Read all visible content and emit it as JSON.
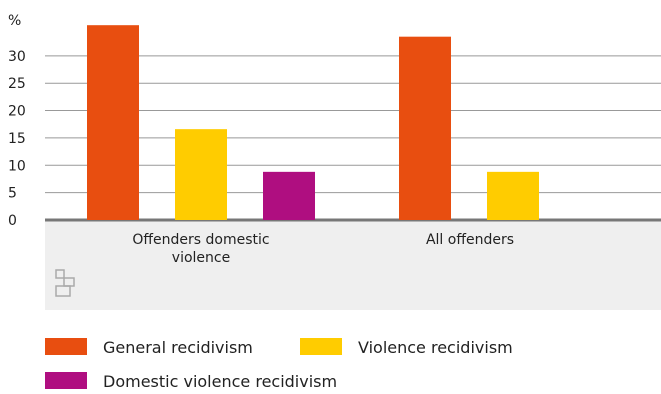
{
  "chart_data": {
    "type": "bar",
    "y_label": "%",
    "categories": [
      "Offenders domestic violence",
      "All offenders"
    ],
    "series": [
      {
        "name": "General recidivism",
        "color": "#e84e10",
        "values": [
          35.6,
          33.5
        ]
      },
      {
        "name": "Violence recidivism",
        "color": "#ffcc00",
        "values": [
          16.6,
          8.8
        ]
      },
      {
        "name": "Domestic violence recidivism",
        "color": "#af0e80",
        "values": [
          8.8,
          null
        ]
      }
    ],
    "ylim": [
      0,
      36
    ],
    "yticks": [
      0,
      5,
      10,
      15,
      20,
      25,
      30
    ],
    "grid": true
  }
}
